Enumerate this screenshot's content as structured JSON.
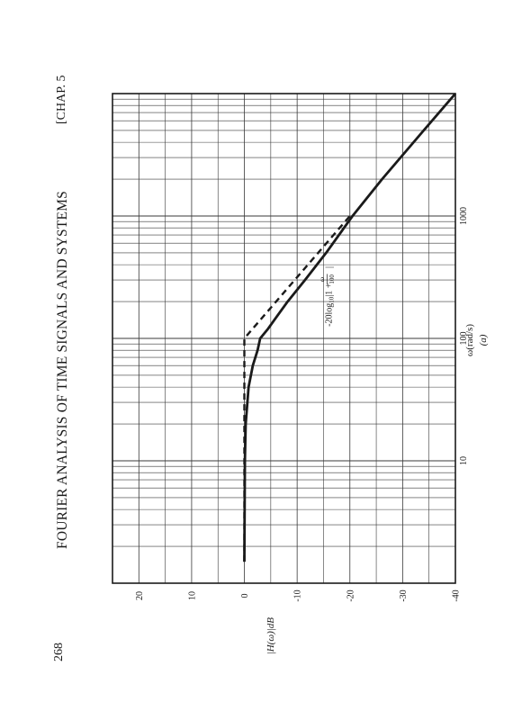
{
  "page": {
    "page_number": "268",
    "running_head": "FOURIER ANALYSIS OF TIME SIGNALS AND SYSTEMS",
    "chapter": "[CHAP. 5"
  },
  "colors": {
    "ink": "#1a1a1a",
    "grid": "#3a3a3a"
  },
  "chart_data": {
    "type": "line",
    "title": "",
    "xlabel": "ω(rad/s)",
    "caption": "(a)",
    "ylabel": "|H(ω)|dB",
    "xscale": "log",
    "xlim": [
      1,
      10000
    ],
    "ylim": [
      -40,
      25
    ],
    "xticks": [
      {
        "value": 10,
        "label": "10"
      },
      {
        "value": 100,
        "label": "100"
      },
      {
        "value": 1000,
        "label": "1000"
      }
    ],
    "yticks": [
      {
        "value": 20,
        "label": "20"
      },
      {
        "value": 10,
        "label": "10"
      },
      {
        "value": 0,
        "label": "0"
      },
      {
        "value": -10,
        "label": "-10"
      },
      {
        "value": -20,
        "label": "-20"
      },
      {
        "value": -30,
        "label": "-30"
      },
      {
        "value": -40,
        "label": "-40"
      }
    ],
    "grid": true,
    "annotation": {
      "text_prefix": "-20log",
      "text_sub": "10",
      "text_bar": "|1 + ",
      "frac_num": "ω",
      "frac_den": "100",
      "text_end": "|",
      "x": 220,
      "y": -16
    },
    "series": [
      {
        "style": "solid",
        "x": [
          1.5,
          10,
          20,
          40,
          60,
          80,
          100,
          120,
          150,
          200,
          300,
          500,
          1000,
          2000,
          5000,
          10000
        ],
        "y": [
          0,
          -0.1,
          -0.25,
          -0.8,
          -1.6,
          -2.5,
          -3.0,
          -4.5,
          -6.1,
          -8.2,
          -11.5,
          -15.5,
          -20.5,
          -26.1,
          -34.0,
          -40.0
        ]
      },
      {
        "style": "dashed",
        "x": [
          1.5,
          10,
          50,
          100,
          1000
        ],
        "y": [
          0,
          0,
          0,
          0,
          -20
        ]
      }
    ]
  }
}
